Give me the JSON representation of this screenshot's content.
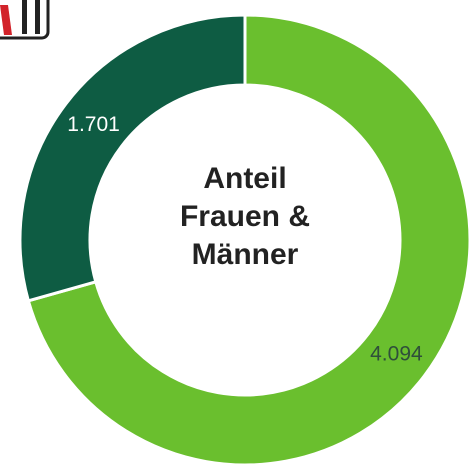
{
  "chart_data": {
    "type": "donut",
    "title": "Anteil Frauen & Männer",
    "values": [
      4094,
      1701
    ],
    "value_labels": [
      "4.094",
      "1.701"
    ],
    "colors": [
      "#6abf2e",
      "#0e5c43"
    ]
  }
}
